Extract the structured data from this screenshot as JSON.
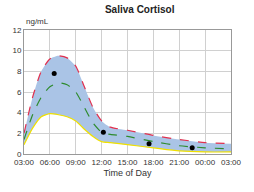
{
  "chart_data": {
    "type": "line",
    "title": "Saliva Cortisol",
    "xlabel": "Time of Day",
    "ylabel": "ng/mL",
    "x": [
      3,
      4,
      5,
      6,
      7,
      8,
      9,
      10,
      11,
      12,
      13,
      15,
      18,
      21,
      24,
      27
    ],
    "series": [
      {
        "color": "#f0e000",
        "line_style": "solid",
        "values": [
          0.9,
          2.5,
          3.6,
          3.9,
          3.8,
          3.6,
          3.2,
          2.4,
          1.7,
          1.2,
          1.1,
          0.9,
          0.6,
          0.3,
          0.2,
          0.2
        ]
      },
      {
        "type": "area",
        "color": "#e0304f",
        "line_style": "dash",
        "values": [
          2.0,
          5.5,
          8.0,
          9.2,
          9.5,
          9.3,
          8.5,
          6.5,
          4.5,
          3.2,
          2.6,
          2.3,
          1.8,
          1.4,
          1.1,
          1.0
        ]
      },
      {
        "color": "#2e8b2e",
        "line_style": "dash",
        "values": [
          1.4,
          3.8,
          5.5,
          6.5,
          6.9,
          6.7,
          6.0,
          4.5,
          3.0,
          2.1,
          1.9,
          1.7,
          1.2,
          0.8,
          0.6,
          0.5
        ]
      },
      {
        "type": "scatter",
        "marker": "circle",
        "color": "#000000",
        "x": [
          6.5,
          12.2,
          17.5,
          22.5
        ],
        "values": [
          7.8,
          2.1,
          1.0,
          0.6
        ]
      }
    ],
    "xlim": [
      3,
      27
    ],
    "xticks": [
      {
        "value": 3,
        "label": "03:00"
      },
      {
        "value": 6,
        "label": "06:00"
      },
      {
        "value": 9,
        "label": "09:00"
      },
      {
        "value": 12,
        "label": "12:00"
      },
      {
        "value": 15,
        "label": "15:00"
      },
      {
        "value": 18,
        "label": "18:00"
      },
      {
        "value": 21,
        "label": "21:00"
      },
      {
        "value": 24,
        "label": "00:00"
      },
      {
        "value": 27,
        "label": "03:00"
      }
    ],
    "ylim": [
      0,
      12
    ],
    "yticks": [
      0,
      2,
      4,
      6,
      8,
      10,
      12
    ],
    "grid": true
  }
}
